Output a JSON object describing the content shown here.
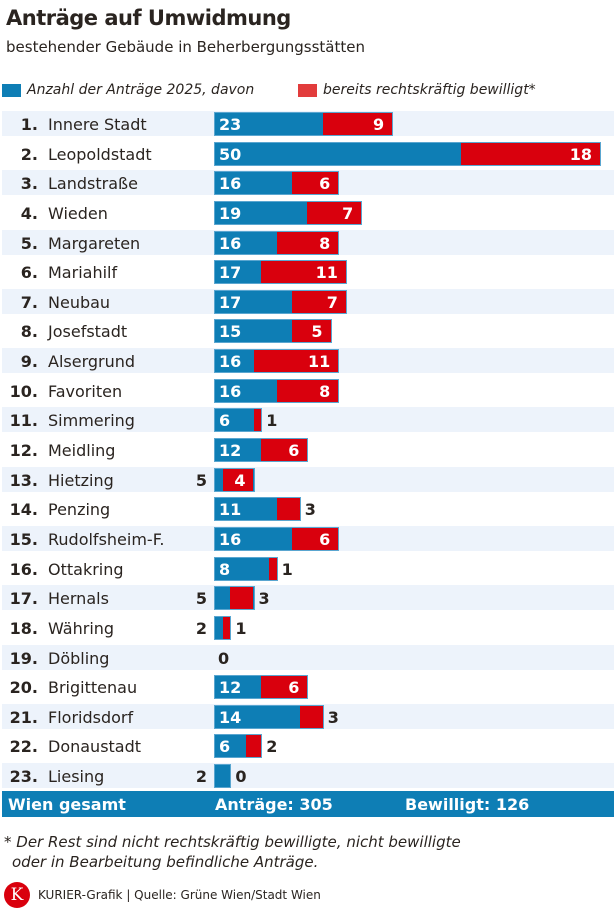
{
  "title": "Anträge auf Umwidmung",
  "subtitle": "bestehender Gebäude in Beherbergungsstätten",
  "colors": {
    "total": "#0e7eb5",
    "approved": "#d9000d",
    "row_alt": "#edf3fb"
  },
  "chart_data": {
    "type": "bar",
    "orientation": "horizontal",
    "stacked_overlay": true,
    "series": [
      {
        "name": "Anzahl der Anträge 2025, davon"
      },
      {
        "name": "bereits rechtskräftig bewilligt*"
      }
    ],
    "rows": [
      {
        "rank": "1.",
        "name": "Innere Stadt",
        "total": 23,
        "approved": 9
      },
      {
        "rank": "2.",
        "name": "Leopoldstadt",
        "total": 50,
        "approved": 18
      },
      {
        "rank": "3.",
        "name": "Landstraße",
        "total": 16,
        "approved": 6
      },
      {
        "rank": "4.",
        "name": "Wieden",
        "total": 19,
        "approved": 7
      },
      {
        "rank": "5.",
        "name": "Margareten",
        "total": 16,
        "approved": 8
      },
      {
        "rank": "6.",
        "name": "Mariahilf",
        "total": 17,
        "approved": 11
      },
      {
        "rank": "7.",
        "name": "Neubau",
        "total": 17,
        "approved": 7
      },
      {
        "rank": "8.",
        "name": "Josefstadt",
        "total": 15,
        "approved": 5
      },
      {
        "rank": "9.",
        "name": "Alsergrund",
        "total": 16,
        "approved": 11
      },
      {
        "rank": "10.",
        "name": "Favoriten",
        "total": 16,
        "approved": 8
      },
      {
        "rank": "11.",
        "name": "Simmering",
        "total": 6,
        "approved": 1
      },
      {
        "rank": "12.",
        "name": "Meidling",
        "total": 12,
        "approved": 6
      },
      {
        "rank": "13.",
        "name": "Hietzing",
        "total": 5,
        "approved": 4
      },
      {
        "rank": "14.",
        "name": "Penzing",
        "total": 11,
        "approved": 3
      },
      {
        "rank": "15.",
        "name": "Rudolfsheim-F.",
        "total": 16,
        "approved": 6
      },
      {
        "rank": "16.",
        "name": "Ottakring",
        "total": 8,
        "approved": 1
      },
      {
        "rank": "17.",
        "name": "Hernals",
        "total": 5,
        "approved": 3
      },
      {
        "rank": "18.",
        "name": "Währing",
        "total": 2,
        "approved": 1
      },
      {
        "rank": "19.",
        "name": "Döbling",
        "total": 0,
        "approved": 0
      },
      {
        "rank": "20.",
        "name": "Brigittenau",
        "total": 12,
        "approved": 6
      },
      {
        "rank": "21.",
        "name": "Floridsdorf",
        "total": 14,
        "approved": 3
      },
      {
        "rank": "22.",
        "name": "Donaustadt",
        "total": 6,
        "approved": 2
      },
      {
        "rank": "23.",
        "name": "Liesing",
        "total": 2,
        "approved": 0
      }
    ],
    "xlim": [
      0,
      50
    ]
  },
  "summary": {
    "label": "Wien gesamt",
    "total": "Anträge: 305",
    "approved": "Bewilligt: 126"
  },
  "footnote_1": "* Der Rest sind nicht rechtskräftig bewilligte, nicht bewilligte",
  "footnote_2": "oder in Bearbeitung befindliche Anträge.",
  "footer": {
    "logo": "K",
    "source": "KURIER-Grafik | Quelle: Grüne Wien/Stadt Wien"
  }
}
